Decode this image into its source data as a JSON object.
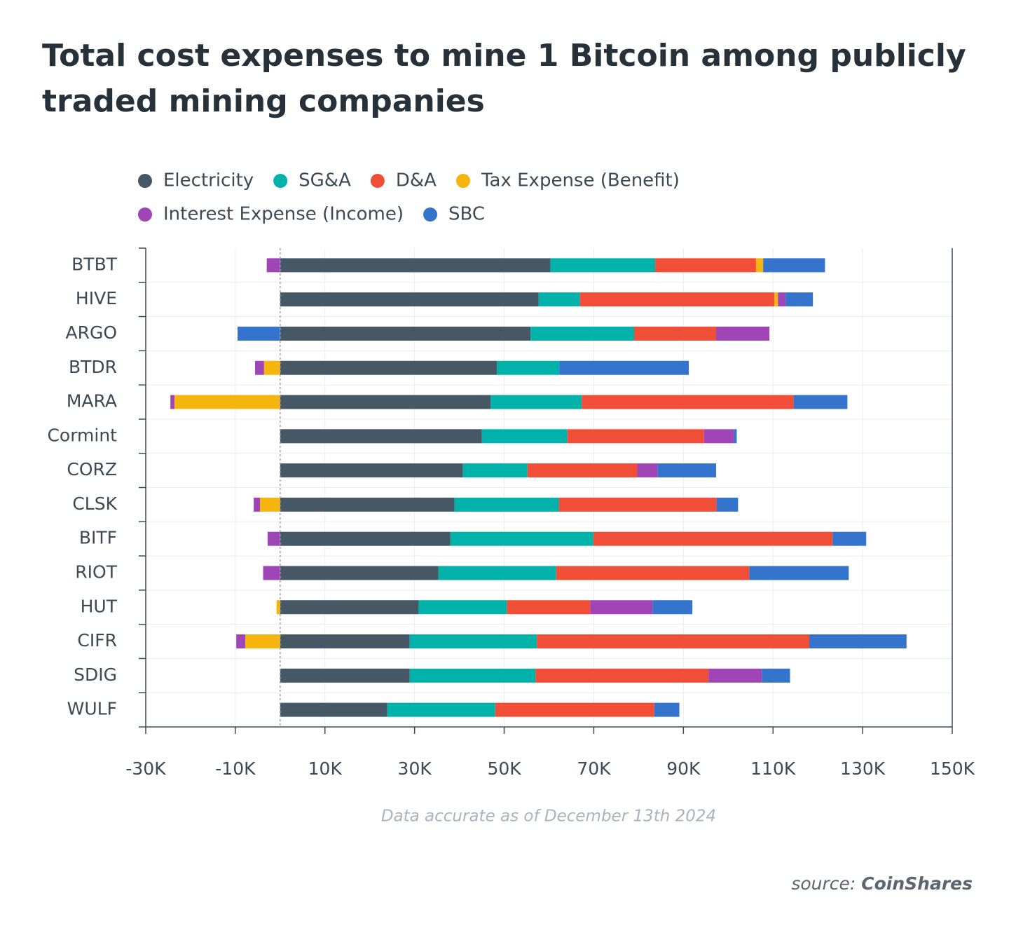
{
  "chart_data": {
    "type": "stacked-bar-horizontal",
    "title": [
      "Total cost expenses to mine 1 Bitcoin among publicly",
      "traded mining companies"
    ],
    "categories": [
      "BTBT",
      "HIVE",
      "ARGO",
      "BTDR",
      "MARA",
      "Cormint",
      "CORZ",
      "CLSK",
      "BITF",
      "RIOT",
      "HUT",
      "CIFR",
      "SDIG",
      "WULF"
    ],
    "series": [
      {
        "name": "Electricity",
        "color": "#465866",
        "values": [
          60300,
          57700,
          55900,
          48400,
          47000,
          45000,
          40800,
          38900,
          38000,
          35300,
          30900,
          28900,
          28900,
          23900
        ]
      },
      {
        "name": "SG&A",
        "color": "#00b2a9",
        "values": [
          23400,
          9200,
          23100,
          13900,
          20300,
          19100,
          14400,
          23300,
          31900,
          26300,
          19700,
          28400,
          28100,
          24100
        ]
      },
      {
        "name": "D&A",
        "color": "#f04e37",
        "values": [
          22500,
          43400,
          18300,
          0,
          47300,
          30500,
          24500,
          35200,
          53400,
          43100,
          18600,
          60800,
          38600,
          35500
        ]
      },
      {
        "name": "Tax Expense (Benefit)",
        "color": "#f5b50e",
        "values": [
          1600,
          800,
          0,
          -3600,
          -23600,
          0,
          0,
          -4500,
          0,
          0,
          -800,
          -7800,
          0,
          0
        ]
      },
      {
        "name": "Interest Expense (Income)",
        "color": "#9f45b6",
        "values": [
          -3000,
          1700,
          11900,
          -2000,
          -900,
          6700,
          4500,
          -1400,
          -2800,
          -3800,
          13900,
          -2000,
          11900,
          0
        ]
      },
      {
        "name": "SBC",
        "color": "#3474cd",
        "values": [
          13800,
          6100,
          -9500,
          28900,
          12000,
          600,
          13100,
          4800,
          7500,
          22200,
          8900,
          21700,
          6300,
          5600
        ]
      }
    ],
    "xlim": [
      -30000,
      150000
    ],
    "xticks": [
      {
        "value": -30000,
        "label": "-30K"
      },
      {
        "value": -10000,
        "label": "-10K"
      },
      {
        "value": 10000,
        "label": "10K"
      },
      {
        "value": 30000,
        "label": "30K"
      },
      {
        "value": 50000,
        "label": "50K"
      },
      {
        "value": 70000,
        "label": "70K"
      },
      {
        "value": 90000,
        "label": "90K"
      },
      {
        "value": 110000,
        "label": "110K"
      },
      {
        "value": 130000,
        "label": "130K"
      },
      {
        "value": 150000,
        "label": "150K"
      }
    ],
    "grid": true,
    "note": "Data accurate as of December 13th 2024",
    "source_label": "source:",
    "source_name": "CoinShares"
  }
}
